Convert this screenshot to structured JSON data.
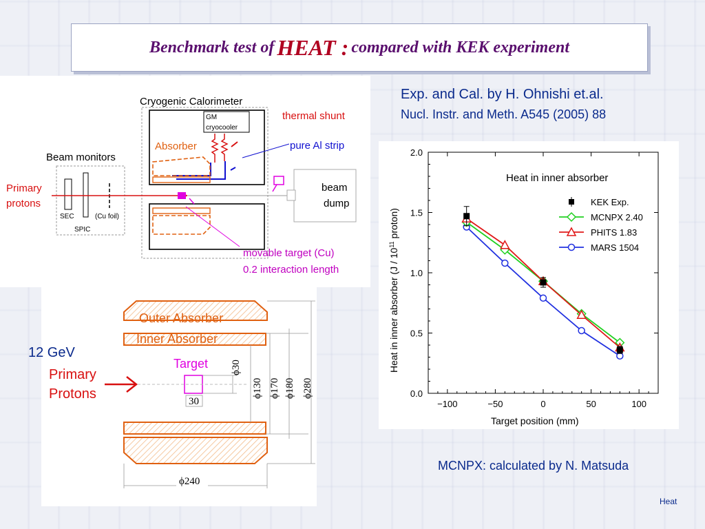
{
  "slide": {
    "title_pre": "Benchmark test of",
    "title_big": "HEAT :",
    "title_post": "compared with KEK experiment",
    "ref_line1": "Exp. and Cal. by H. Ohnishi et.al.",
    "ref_line2": "Nucl. Instr. and Meth. A545 (2005) 88",
    "mcnpx_note": "MCNPX: calculated by N. Matsuda",
    "footer": "Heat"
  },
  "setup_diagram": {
    "cryogenic": "Cryogenic Calorimeter",
    "gm": "GM",
    "cryocooler": "cryocooler",
    "thermal_shunt": "thermal shunt",
    "absorber": "Absorber",
    "al_strip": "pure Al strip",
    "beam_monitors": "Beam monitors",
    "primary": "Primary",
    "protons": "protons",
    "sec": "SEC",
    "spic": "SPIC",
    "cu_foil": "(Cu foil)",
    "beam": "beam",
    "dump": "dump",
    "movable_target": "movable target (Cu)",
    "interaction": "0.2 interaction length"
  },
  "geometry_diagram": {
    "energy": "12 GeV",
    "primary": "Primary",
    "protons": "Protons",
    "outer": "Outer Absorber",
    "inner": "Inner Absorber",
    "target": "Target",
    "d30": "ϕ30",
    "d130": "ϕ130",
    "d170": "ϕ170",
    "d180": "ϕ180",
    "d280": "ϕ280",
    "len30": "30",
    "d240": "ϕ240"
  },
  "chart_data": {
    "type": "line",
    "title": "Heat in inner absorber",
    "xlabel": "Target position (mm)",
    "ylabel_pre": "Heat in inner absorber (J / 10",
    "ylabel_sup": "11",
    "ylabel_post": " proton)",
    "xlim": [
      -120,
      120
    ],
    "ylim": [
      0.0,
      2.0
    ],
    "xticks": [
      -100,
      -50,
      0,
      50,
      100
    ],
    "xtick_labels": [
      "−100",
      "−50",
      "0",
      "50",
      "100"
    ],
    "yticks": [
      0.0,
      0.5,
      1.0,
      1.5,
      2.0
    ],
    "ytick_labels": [
      "0.0",
      "0.5",
      "1.0",
      "1.5",
      "2.0"
    ],
    "legend_position": "top-right",
    "series": [
      {
        "name": "KEK Exp.",
        "marker": "square",
        "color": "#000000",
        "line": false,
        "x": [
          -80,
          0,
          80
        ],
        "y": [
          1.47,
          0.92,
          0.36
        ],
        "err": [
          0.08,
          0.04,
          0.03
        ]
      },
      {
        "name": "MCNPX 2.40",
        "marker": "diamond",
        "color": "#20d020",
        "line": true,
        "x": [
          -80,
          -40,
          0,
          40,
          80
        ],
        "y": [
          1.42,
          1.19,
          0.93,
          0.66,
          0.42
        ]
      },
      {
        "name": "PHITS 1.83",
        "marker": "triangle",
        "color": "#e01818",
        "line": true,
        "x": [
          -80,
          -40,
          0,
          40,
          80
        ],
        "y": [
          1.45,
          1.23,
          0.93,
          0.65,
          0.38
        ]
      },
      {
        "name": "MARS 1504",
        "marker": "circle",
        "color": "#2030e0",
        "line": true,
        "x": [
          -80,
          -40,
          0,
          40,
          80
        ],
        "y": [
          1.38,
          1.08,
          0.79,
          0.52,
          0.31
        ]
      }
    ]
  }
}
